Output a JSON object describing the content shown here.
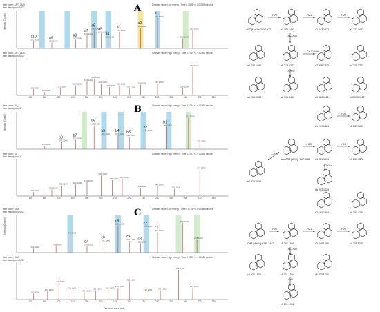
{
  "panels": [
    {
      "letter": "A",
      "hdr_top": [
        "Item name: ART_2825",
        "Item description: MS2"
      ],
      "hdr_bot": [
        "Item name: ART_2825",
        "Item description: MS2"
      ],
      "chan_top": "Channel name: Low energy : Time 6.2485 +/- 0.02559 minutes",
      "chan_bot": "Channel name: High energy : Time 6.2754 +/- 0.02560 minutes",
      "bands": [
        [
          158,
          "#9fd3ea"
        ],
        [
          176,
          "#9fd3ea"
        ],
        [
          195,
          "#9fd3ea"
        ],
        [
          205,
          "#9fd3ea"
        ],
        [
          228,
          "#f3e08a"
        ],
        [
          240,
          "#9fd3ea"
        ],
        [
          260,
          "#c9e9c0"
        ]
      ],
      "top_peaks": [
        [
          152,
          0.22,
          "a10"
        ],
        [
          165,
          0.18,
          "a9"
        ],
        [
          182,
          0.26,
          "a8"
        ],
        [
          190,
          0.4,
          "a7"
        ],
        [
          195,
          0.55,
          "a6"
        ],
        [
          200,
          0.45,
          "a5"
        ],
        [
          205,
          0.3,
          "a4"
        ],
        [
          213,
          0.5,
          "a3"
        ],
        [
          228,
          0.62,
          "a2"
        ],
        [
          240,
          0.92,
          "a1"
        ],
        [
          258,
          0.3,
          ""
        ],
        [
          265,
          0.55,
          ""
        ]
      ],
      "bot_peaks": [
        [
          152,
          0.18
        ],
        [
          160,
          0.1
        ],
        [
          171,
          0.22
        ],
        [
          182,
          0.3
        ],
        [
          190,
          0.42
        ],
        [
          195,
          0.5
        ],
        [
          200,
          0.35
        ],
        [
          206,
          0.25
        ],
        [
          213,
          0.3
        ],
        [
          220,
          0.2
        ],
        [
          228,
          0.32
        ],
        [
          240,
          0.35
        ],
        [
          258,
          0.22
        ],
        [
          265,
          0.85
        ]
      ],
      "molecules": [
        {
          "id": "ART [M+H]+ 283.1537"
        },
        {
          "id": "a1 265.1433"
        },
        {
          "id": "a2 247.1327"
        },
        {
          "id": "a3 237.1483"
        },
        {
          "id": "a5 219.1377"
        },
        {
          "id": "a7 209.1223"
        },
        {
          "id": "a4 229.1223"
        },
        {
          "id": "a6 209.1535"
        },
        {
          "id": "a8 191.1430"
        },
        {
          "id": "a9 163.1116"
        },
        {
          "id": "a10 151.1117"
        }
      ]
    },
    {
      "letter": "B",
      "hdr_top": [
        "Item name: BL_1",
        "Item description: 1"
      ],
      "hdr_bot": [
        "Item name: BL_1",
        "Item description: 1"
      ],
      "chan_top": "Channel name: High energy : Time 8.2764 +/- 0.02585 minutes",
      "chan_bot": "Channel name: High energy : Time 8.5723 +/- 0.02586 minutes",
      "bands": [
        [
          188,
          "#c9e9c0"
        ],
        [
          202,
          "#9fd3ea"
        ],
        [
          214,
          "#9fd3ea"
        ],
        [
          230,
          "#9fd3ea"
        ],
        [
          248,
          "#9fd3ea"
        ],
        [
          262,
          "#c9e9c0"
        ]
      ],
      "top_peaks": [
        [
          160,
          0.1,
          ""
        ],
        [
          172,
          0.22,
          "b8"
        ],
        [
          182,
          0.28,
          "b7"
        ],
        [
          195,
          0.72,
          "b6"
        ],
        [
          202,
          0.42,
          "b5"
        ],
        [
          212,
          0.42,
          "b4"
        ],
        [
          220,
          0.38,
          "b3"
        ],
        [
          232,
          0.52,
          "b2"
        ],
        [
          246,
          0.68,
          "b1"
        ],
        [
          262,
          0.95,
          ""
        ],
        [
          270,
          0.2,
          ""
        ]
      ],
      "bot_peaks": [
        [
          152,
          0.12
        ],
        [
          165,
          0.2
        ],
        [
          172,
          0.32
        ],
        [
          182,
          0.35
        ],
        [
          190,
          0.42
        ],
        [
          200,
          0.62
        ],
        [
          208,
          0.48
        ],
        [
          215,
          0.52
        ],
        [
          228,
          0.25
        ],
        [
          240,
          0.3
        ],
        [
          252,
          0.22
        ],
        [
          270,
          0.8
        ]
      ],
      "molecules": [
        {
          "id": "b1 249.1483"
        },
        {
          "id": "deo-ART [M+H]+ 267.1588"
        },
        {
          "id": "b2 239.1639"
        },
        {
          "id": "b4 221.1534"
        },
        {
          "id": "b6 203.1429"
        },
        {
          "id": "b3 231.1378"
        },
        {
          "id": "b7 193.1584"
        },
        {
          "id": "b8 191.1380"
        }
      ]
    },
    {
      "letter": "C",
      "hdr_top": [
        "Item name: DHA",
        "Item description: MS2"
      ],
      "hdr_bot": [
        "Item name: DHA",
        "Item description: MS2"
      ],
      "chan_top": "Channel name: Low energy : Time 6.8729 +/- 0.02588 minutes",
      "chan_bot": "Channel name: High energy : Time 6.8729 +/- 0.02588 minutes",
      "bands": [
        [
          178,
          "#9fd3ea"
        ],
        [
          212,
          "#9fd3ea"
        ],
        [
          232,
          "#9fd3ea"
        ],
        [
          255,
          "#c9e9c0"
        ],
        [
          268,
          "#c9e9c0"
        ]
      ],
      "top_peaks": [
        [
          152,
          0.12,
          ""
        ],
        [
          168,
          0.2,
          ""
        ],
        [
          178,
          0.55,
          ""
        ],
        [
          190,
          0.2,
          "c7"
        ],
        [
          202,
          0.32,
          "c6"
        ],
        [
          212,
          0.82,
          "c5"
        ],
        [
          220,
          0.35,
          "c4"
        ],
        [
          228,
          0.28,
          "c3"
        ],
        [
          232,
          0.75,
          "c2"
        ],
        [
          240,
          0.62,
          "c1"
        ],
        [
          258,
          0.9,
          ""
        ],
        [
          268,
          0.4,
          ""
        ]
      ],
      "bot_peaks": [
        [
          152,
          0.18
        ],
        [
          162,
          0.25
        ],
        [
          170,
          0.5
        ],
        [
          178,
          0.3
        ],
        [
          188,
          0.22
        ],
        [
          196,
          0.28
        ],
        [
          205,
          0.3
        ],
        [
          212,
          0.35
        ],
        [
          220,
          0.55
        ],
        [
          232,
          0.25
        ],
        [
          242,
          0.28
        ],
        [
          255,
          0.9
        ],
        [
          265,
          0.35
        ]
      ],
      "molecules": [
        {
          "id": "DHA [M+Na]+ 285.1447"
        },
        {
          "id": "c1 267.1591"
        },
        {
          "id": "c2 249.1485"
        },
        {
          "id": "c4 231.1380"
        },
        {
          "id": "c3 239.1639"
        },
        {
          "id": "c5 221.1534"
        },
        {
          "id": "c6 203.1430"
        },
        {
          "id": "c7 191.1098"
        }
      ]
    }
  ],
  "xaxis_label": "Observed mass (m/z)",
  "arrow_h2o": "-H2O",
  "arrow_hcooh": "-HCOOH",
  "arrow_ch2cooh": "-CH2COOH",
  "arrow_ch2o": "-CH2O",
  "arrow_c2h4": "-C2H4",
  "arrow_ch3": "-CH3"
}
